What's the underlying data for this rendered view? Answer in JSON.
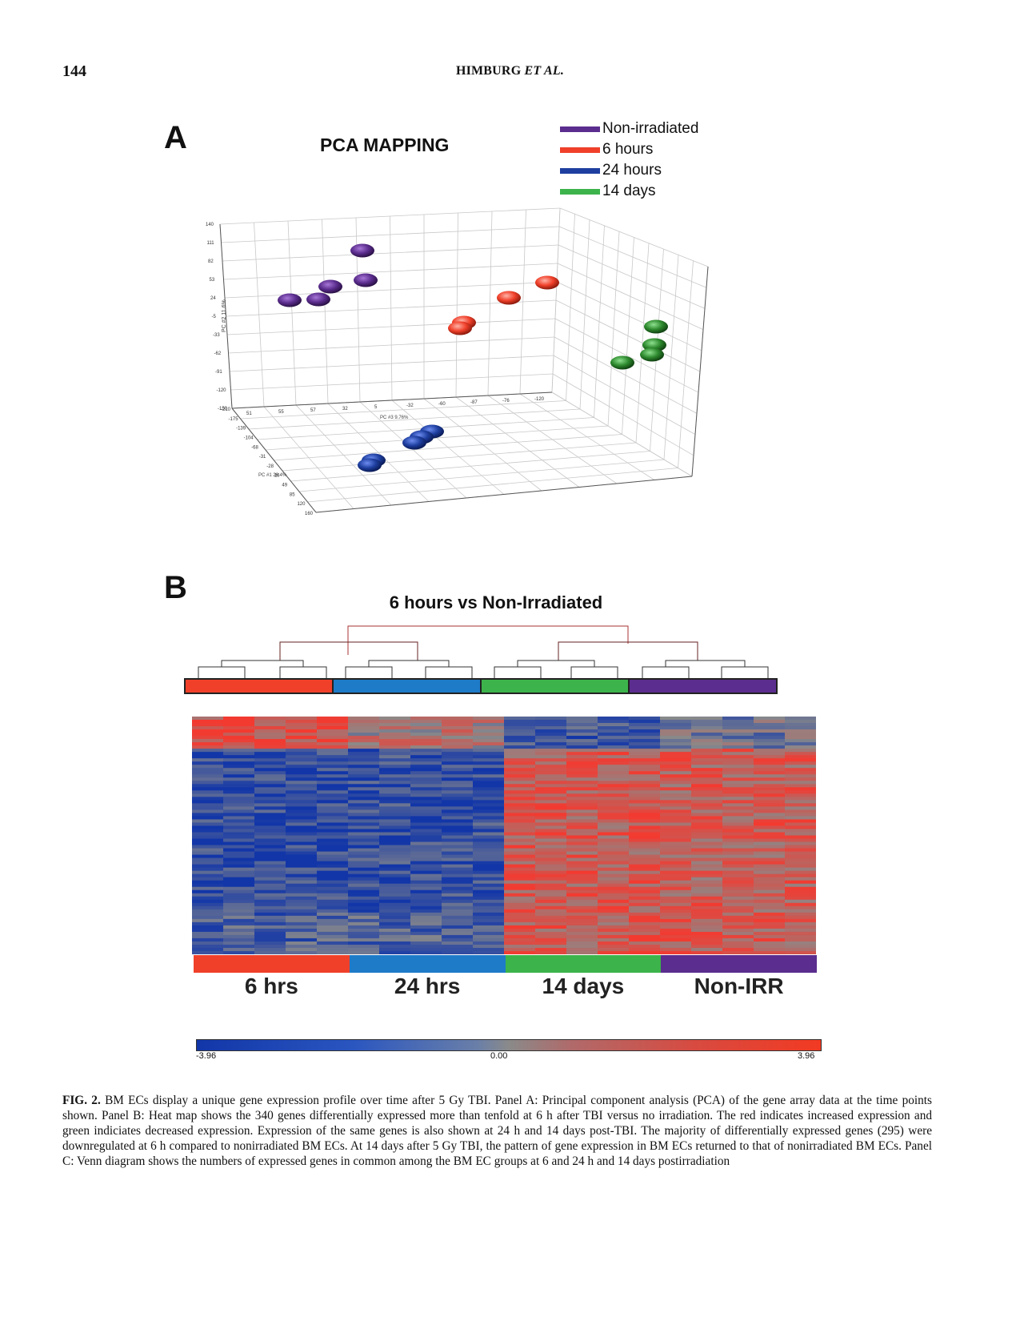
{
  "page": {
    "number": "144",
    "running_head": "HIMBURG",
    "running_head_italic": "ET AL."
  },
  "panel_a": {
    "letter": "A",
    "title": "PCA MAPPING",
    "legend": [
      {
        "label": "Non-irradiated",
        "color": "#5b2d8e"
      },
      {
        "label": "6 hours",
        "color": "#f0402a"
      },
      {
        "label": "24 hours",
        "color": "#1e3fa0"
      },
      {
        "label": "14 days",
        "color": "#3cb44b"
      }
    ],
    "axis_labels": {
      "pc2": "PC #2 11.6%",
      "pc3": "PC #3 9.76%",
      "pc1": "PC #1 26.4%"
    },
    "y_ticks": [
      "140",
      "111",
      "82",
      "53",
      "24",
      "-5",
      "-33",
      "-62",
      "-91",
      "-120",
      "-150"
    ],
    "x_ticks": [
      "-210",
      "-175",
      "-139",
      "-104",
      "-68",
      "-31",
      "-27",
      "-25",
      "-73",
      "-98",
      "-123",
      "-100"
    ],
    "depth_ticks": [
      "-210",
      "-175",
      "-139",
      "-104",
      "-68",
      "-31",
      "-28",
      "16",
      "49",
      "85",
      "120",
      "160"
    ],
    "top_ticks": [
      "51",
      "55",
      "57",
      "32",
      "5",
      "-32",
      "-60",
      "-87",
      "-76",
      "-120"
    ]
  },
  "chart_data": {
    "type": "scatter",
    "title": "PCA MAPPING",
    "series": [
      {
        "name": "Non-irradiated",
        "color": "#5b2d8e",
        "count": 5
      },
      {
        "name": "6 hours",
        "color": "#f0402a",
        "count": 4
      },
      {
        "name": "24 hours",
        "color": "#1e3fa0",
        "count": 5
      },
      {
        "name": "14 days",
        "color": "#3cb44b",
        "count": 4
      }
    ]
  },
  "panel_b": {
    "letter": "B",
    "title": "6 hours vs Non-Irradiated",
    "groups": [
      {
        "label": "6 hrs",
        "color": "#f0402a"
      },
      {
        "label": "24 hrs",
        "color": "#1e7bc8"
      },
      {
        "label": "14 days",
        "color": "#3cb44b"
      },
      {
        "label": "Non-IRR",
        "color": "#5b2d8e"
      }
    ],
    "scale": {
      "min": "-3.96",
      "mid": "0.00",
      "max": "3.96"
    }
  },
  "caption": {
    "label": "FIG. 2.",
    "text": "BM ECs display a unique gene expression profile over time after 5 Gy TBI. Panel A: Principal component analysis (PCA) of the gene array data at the time points shown. Panel B: Heat map shows the 340 genes differentially expressed more than tenfold at 6 h after TBI versus no irradiation. The red indicates increased expression and green indiciates decreased expression. Expression of the same genes is also shown at 24 h and 14 days post-TBI. The majority of differentially expressed genes (295) were downregulated at 6 h compared to nonirradiated BM ECs. At 14 days after 5 Gy TBI, the pattern of gene expression in BM ECs returned to that of nonirradiated BM ECs. Panel C: Venn diagram shows the numbers of expressed genes in common among the BM EC groups at 6 and 24 h and 14 days postirradiation"
  }
}
